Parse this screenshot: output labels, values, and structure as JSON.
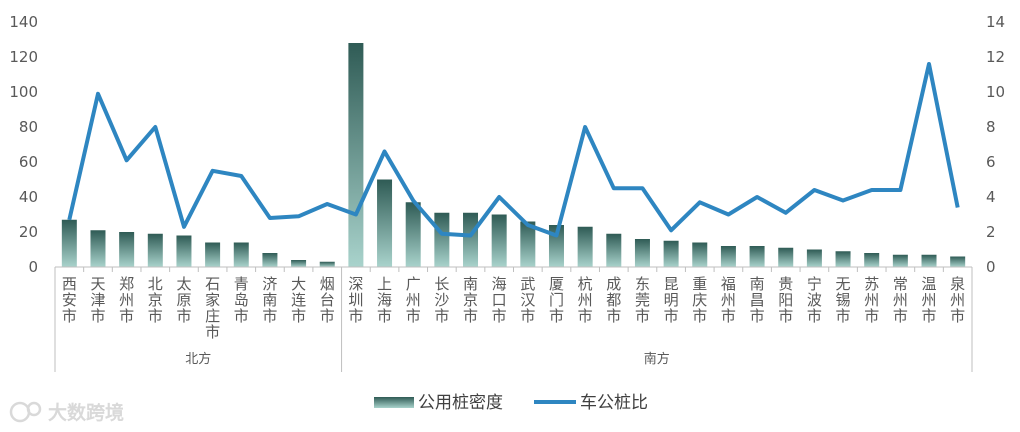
{
  "chart_data": {
    "type": "bar",
    "categories": [
      "西安市",
      "天津市",
      "郑州市",
      "北京市",
      "太原市",
      "石家庄市",
      "青岛市",
      "济南市",
      "大连市",
      "烟台市",
      "深圳市",
      "上海市",
      "广州市",
      "长沙市",
      "南京市",
      "海口市",
      "武汉市",
      "厦门市",
      "杭州市",
      "成都市",
      "东莞市",
      "昆明市",
      "重庆市",
      "福州市",
      "南昌市",
      "贵阳市",
      "宁波市",
      "无锡市",
      "苏州市",
      "常州市",
      "温州市",
      "泉州市"
    ],
    "groups": [
      {
        "name": "北方",
        "count": 10
      },
      {
        "name": "南方",
        "count": 22
      }
    ],
    "series": [
      {
        "name": "公用桩密度",
        "type": "bar",
        "axis": "left",
        "values": [
          27,
          21,
          20,
          19,
          18,
          14,
          14,
          8,
          4,
          3,
          128,
          50,
          37,
          31,
          31,
          30,
          26,
          24,
          23,
          19,
          16,
          15,
          14,
          12,
          12,
          11,
          10,
          9,
          8,
          7,
          7,
          6
        ]
      },
      {
        "name": "车公桩比",
        "type": "line",
        "axis": "right",
        "values": [
          2.7,
          9.9,
          6.1,
          8.0,
          2.3,
          5.5,
          5.2,
          2.8,
          2.9,
          3.6,
          3.0,
          6.6,
          3.8,
          1.9,
          1.8,
          4.0,
          2.4,
          1.8,
          8.0,
          4.5,
          4.5,
          2.1,
          3.7,
          3.0,
          4.0,
          3.1,
          4.4,
          3.8,
          4.4,
          4.4,
          11.6,
          3.4
        ]
      }
    ],
    "ylim_left": [
      0,
      140
    ],
    "yticks_left": [
      0,
      20,
      40,
      60,
      80,
      100,
      120,
      140
    ],
    "ylim_right": [
      0,
      14
    ],
    "yticks_right": [
      0,
      2,
      4,
      6,
      8,
      10,
      12,
      14
    ],
    "grid": false,
    "legend_position": "bottom-center",
    "colors": {
      "bar_top": "#2f5b55",
      "bar_bottom": "#a9d3cc",
      "line": "#2e86c1",
      "axis": "#bfbfbf"
    }
  },
  "watermark": "大数跨境"
}
